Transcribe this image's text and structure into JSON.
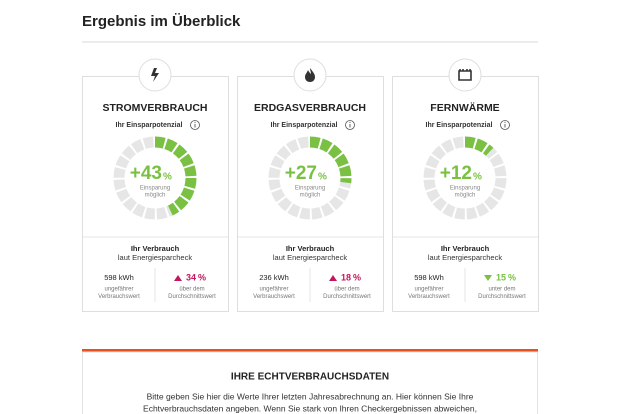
{
  "header": {
    "title": "Ergebnis im Überblick"
  },
  "cards": [
    {
      "title": "STROMVERBRAUCH",
      "potential_label": "Ihr Einsparpotenzial",
      "savings": 43,
      "savings_label": "+43",
      "savings_unit": "%",
      "savings_note": [
        "Einsparung",
        "möglich"
      ],
      "usage_title": "Ihr Verbrauch",
      "usage_subtitle": "laut Energiesparcheck",
      "usage_value": "598 kWh",
      "usage_note": [
        "ungefährer",
        "Verbrauchswert"
      ],
      "deviation": 34,
      "deviation_unit": "%",
      "deviation_direction": "up",
      "deviation_note": [
        "über dem",
        "Durchschnittswert"
      ]
    },
    {
      "title": "ERDGASVERBRAUCH",
      "potential_label": "Ihr Einsparpotenzial",
      "savings": 27,
      "savings_label": "+27",
      "savings_unit": "%",
      "savings_note": [
        "Einsparung",
        "möglich"
      ],
      "usage_title": "Ihr Verbrauch",
      "usage_subtitle": "laut Energiesparcheck",
      "usage_value": "236 kWh",
      "usage_note": [
        "ungefährer",
        "Verbrauchswert"
      ],
      "deviation": 18,
      "deviation_unit": "%",
      "deviation_direction": "up",
      "deviation_note": [
        "über dem",
        "Durchschnittswert"
      ]
    },
    {
      "title": "FERNWÄRME",
      "potential_label": "Ihr Einsparpotenzial",
      "savings": 12,
      "savings_label": "+12",
      "savings_unit": "%",
      "savings_note": [
        "Einsparung",
        "möglich"
      ],
      "usage_title": "Ihr Verbrauch",
      "usage_subtitle": "laut Energiesparcheck",
      "usage_value": "598 kWh",
      "usage_note": [
        "ungefährer",
        "Verbrauchswert"
      ],
      "deviation": 15,
      "deviation_unit": "%",
      "deviation_direction": "down",
      "deviation_note": [
        "unter dem",
        "Durchschnittswert"
      ]
    }
  ],
  "section": {
    "title": "IHRE ECHTVERBRAUCHSDATEN",
    "lines": [
      "Bitte geben Sie hier die Werte Ihrer letzten Jahresabrechnung an. Hier können Sie Ihre",
      "Echtverbrauchsdaten angeben. Wenn Sie stark von Ihren Checkergebnissen abweichen,"
    ]
  }
}
